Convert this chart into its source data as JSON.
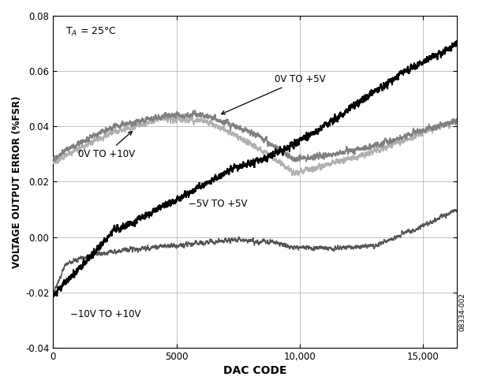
{
  "xlabel": "DAC CODE",
  "ylabel": "VOLTAGE OUTPUT ERROR (%FSR)",
  "annotation": "Tₐ = 25°C",
  "watermark": "08334-002",
  "xlim": [
    0,
    16383
  ],
  "ylim": [
    -0.04,
    0.08
  ],
  "xticks": [
    0,
    5000,
    10000,
    15000
  ],
  "yticks": [
    -0.04,
    -0.02,
    0,
    0.02,
    0.04,
    0.06,
    0.08
  ],
  "grid_color": "#aaaaaa",
  "bg_color": "#ffffff",
  "labels": {
    "0v_to_5v": "0V TO +5V",
    "0v_to_10v": "0V TO +10V",
    "neg5v_to_5v": "−5V TO +5V",
    "neg10v_to_10v": "−10V TO +10V"
  }
}
